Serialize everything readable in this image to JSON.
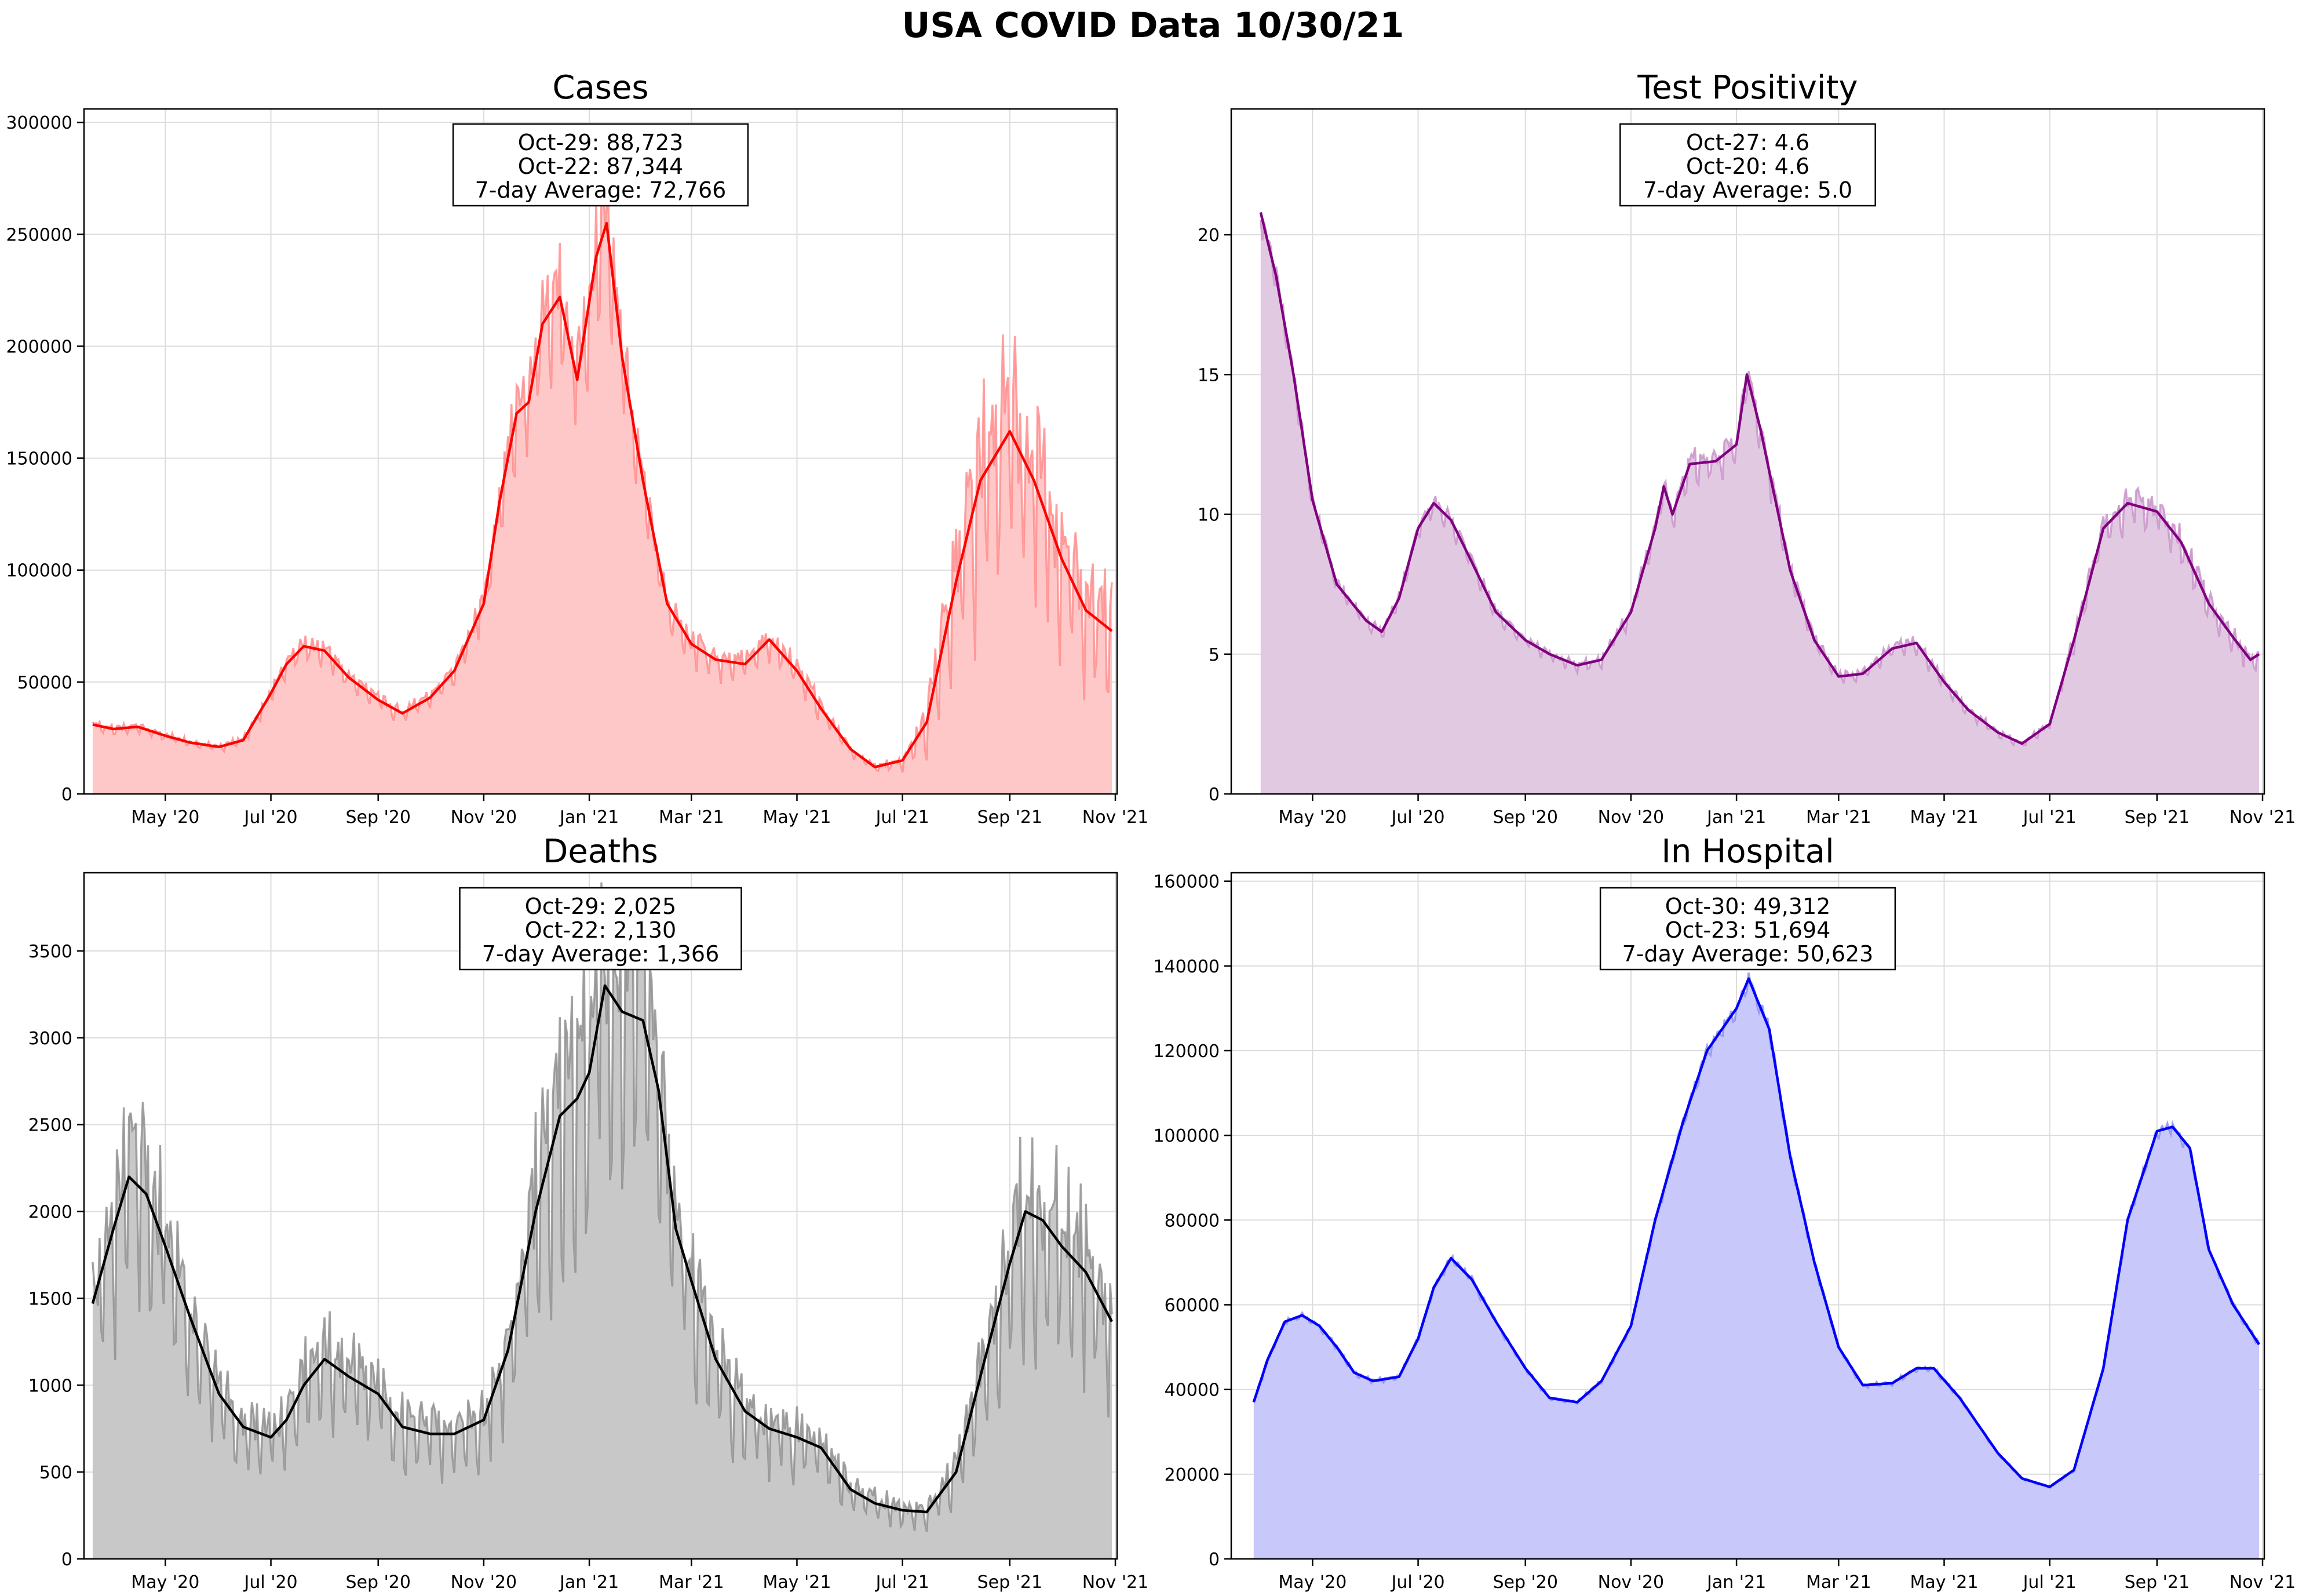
{
  "suptitle": "USA COVID Data 10/30/21",
  "x_tick_labels": [
    "May '20",
    "Jul '20",
    "Sep '20",
    "Nov '20",
    "Jan '21",
    "Mar '21",
    "May '21",
    "Jul '21",
    "Sep '21",
    "Nov '21"
  ],
  "chart_data": [
    {
      "type": "area",
      "title": "Cases",
      "color": "#ff0000",
      "fill_color": "#ffc8c8",
      "raw_color": "#ff8a8a",
      "xlim": [
        "2020-03-15",
        "2021-11-02"
      ],
      "ylim": [
        0,
        306000
      ],
      "yticks": [
        0,
        50000,
        100000,
        150000,
        200000,
        250000,
        300000
      ],
      "grid": true,
      "annotation": [
        "Oct-29: 88,723",
        "Oct-22: 87,344",
        "7-day Average: 72,766"
      ],
      "avg_points": [
        [
          "2020-03-20",
          31000
        ],
        [
          "2020-04-01",
          29000
        ],
        [
          "2020-04-15",
          30000
        ],
        [
          "2020-05-01",
          26000
        ],
        [
          "2020-05-15",
          23000
        ],
        [
          "2020-06-01",
          21000
        ],
        [
          "2020-06-15",
          24000
        ],
        [
          "2020-07-01",
          45000
        ],
        [
          "2020-07-10",
          58000
        ],
        [
          "2020-07-20",
          66000
        ],
        [
          "2020-08-01",
          64000
        ],
        [
          "2020-08-15",
          52000
        ],
        [
          "2020-09-01",
          42000
        ],
        [
          "2020-09-15",
          36000
        ],
        [
          "2020-10-01",
          43000
        ],
        [
          "2020-10-15",
          55000
        ],
        [
          "2020-11-01",
          85000
        ],
        [
          "2020-11-10",
          130000
        ],
        [
          "2020-11-20",
          170000
        ],
        [
          "2020-11-27",
          175000
        ],
        [
          "2020-12-05",
          210000
        ],
        [
          "2020-12-15",
          222000
        ],
        [
          "2020-12-25",
          185000
        ],
        [
          "2021-01-05",
          240000
        ],
        [
          "2021-01-11",
          255000
        ],
        [
          "2021-01-20",
          195000
        ],
        [
          "2021-02-01",
          140000
        ],
        [
          "2021-02-15",
          85000
        ],
        [
          "2021-03-01",
          67000
        ],
        [
          "2021-03-15",
          60000
        ],
        [
          "2021-04-01",
          58000
        ],
        [
          "2021-04-15",
          69000
        ],
        [
          "2021-05-01",
          55000
        ],
        [
          "2021-05-15",
          38000
        ],
        [
          "2021-06-01",
          20000
        ],
        [
          "2021-06-15",
          12000
        ],
        [
          "2021-07-01",
          15000
        ],
        [
          "2021-07-15",
          32000
        ],
        [
          "2021-08-01",
          95000
        ],
        [
          "2021-08-15",
          140000
        ],
        [
          "2021-09-01",
          162000
        ],
        [
          "2021-09-15",
          140000
        ],
        [
          "2021-10-01",
          105000
        ],
        [
          "2021-10-15",
          82000
        ],
        [
          "2021-10-30",
          72766
        ]
      ],
      "raw_spread": [
        [
          "2020-03-15",
          0.1
        ],
        [
          "2021-06-15",
          0.2
        ],
        [
          "2021-07-15",
          0.55
        ],
        [
          "2021-11-01",
          0.5
        ]
      ]
    },
    {
      "type": "area",
      "title": "Test Positivity",
      "color": "#800080",
      "fill_color": "#e2c9e2",
      "raw_color": "#c890c8",
      "xlim": [
        "2020-03-15",
        "2021-11-02"
      ],
      "ylim": [
        0,
        24.5
      ],
      "yticks": [
        0,
        5,
        10,
        15,
        20
      ],
      "grid": true,
      "annotation": [
        "Oct-27: 4.6",
        "Oct-20: 4.6",
        "7-day Average: 5.0"
      ],
      "avg_points": [
        [
          "2020-04-01",
          20.8
        ],
        [
          "2020-04-10",
          18.5
        ],
        [
          "2020-04-20",
          15.0
        ],
        [
          "2020-05-01",
          10.5
        ],
        [
          "2020-05-15",
          7.5
        ],
        [
          "2020-06-01",
          6.2
        ],
        [
          "2020-06-10",
          5.8
        ],
        [
          "2020-06-20",
          7.0
        ],
        [
          "2020-07-01",
          9.5
        ],
        [
          "2020-07-10",
          10.4
        ],
        [
          "2020-07-20",
          9.8
        ],
        [
          "2020-08-01",
          8.3
        ],
        [
          "2020-08-15",
          6.5
        ],
        [
          "2020-09-01",
          5.5
        ],
        [
          "2020-09-15",
          5.0
        ],
        [
          "2020-10-01",
          4.6
        ],
        [
          "2020-10-15",
          4.8
        ],
        [
          "2020-11-01",
          6.5
        ],
        [
          "2020-11-15",
          9.5
        ],
        [
          "2020-11-20",
          11.0
        ],
        [
          "2020-11-25",
          10.0
        ],
        [
          "2020-12-05",
          11.8
        ],
        [
          "2020-12-20",
          11.9
        ],
        [
          "2021-01-01",
          12.5
        ],
        [
          "2021-01-07",
          15.0
        ],
        [
          "2021-01-15",
          13.0
        ],
        [
          "2021-02-01",
          8.0
        ],
        [
          "2021-02-15",
          5.5
        ],
        [
          "2021-03-01",
          4.2
        ],
        [
          "2021-03-15",
          4.3
        ],
        [
          "2021-04-01",
          5.2
        ],
        [
          "2021-04-15",
          5.4
        ],
        [
          "2021-05-01",
          4.0
        ],
        [
          "2021-05-15",
          3.0
        ],
        [
          "2021-06-01",
          2.2
        ],
        [
          "2021-06-15",
          1.8
        ],
        [
          "2021-07-01",
          2.5
        ],
        [
          "2021-07-15",
          5.5
        ],
        [
          "2021-08-01",
          9.5
        ],
        [
          "2021-08-15",
          10.4
        ],
        [
          "2021-09-01",
          10.1
        ],
        [
          "2021-09-15",
          9.0
        ],
        [
          "2021-10-01",
          6.8
        ],
        [
          "2021-10-15",
          5.6
        ],
        [
          "2021-10-25",
          4.8
        ],
        [
          "2021-10-30",
          5.0
        ]
      ],
      "raw_spread": [
        [
          "2020-04-01",
          0.04
        ],
        [
          "2021-11-01",
          0.12
        ]
      ]
    },
    {
      "type": "area",
      "title": "Deaths",
      "color": "#000000",
      "fill_color": "#c8c8c8",
      "raw_color": "#8c8c8c",
      "xlim": [
        "2020-03-15",
        "2021-11-02"
      ],
      "ylim": [
        0,
        3950
      ],
      "yticks": [
        0,
        500,
        1000,
        1500,
        2000,
        2500,
        3000,
        3500
      ],
      "grid": true,
      "annotation": [
        "Oct-29: 2,025",
        "Oct-22: 2,130",
        "7-day Average: 1,366"
      ],
      "avg_points": [
        [
          "2020-03-20",
          1470
        ],
        [
          "2020-04-01",
          1900
        ],
        [
          "2020-04-10",
          2200
        ],
        [
          "2020-04-20",
          2100
        ],
        [
          "2020-05-01",
          1800
        ],
        [
          "2020-05-15",
          1400
        ],
        [
          "2020-06-01",
          950
        ],
        [
          "2020-06-15",
          760
        ],
        [
          "2020-07-01",
          700
        ],
        [
          "2020-07-10",
          800
        ],
        [
          "2020-07-20",
          1000
        ],
        [
          "2020-08-01",
          1150
        ],
        [
          "2020-08-15",
          1050
        ],
        [
          "2020-09-01",
          950
        ],
        [
          "2020-09-15",
          760
        ],
        [
          "2020-10-01",
          720
        ],
        [
          "2020-10-15",
          720
        ],
        [
          "2020-11-01",
          800
        ],
        [
          "2020-11-15",
          1200
        ],
        [
          "2020-12-01",
          2000
        ],
        [
          "2020-12-15",
          2550
        ],
        [
          "2020-12-25",
          2650
        ],
        [
          "2021-01-01",
          2800
        ],
        [
          "2021-01-10",
          3300
        ],
        [
          "2021-01-20",
          3150
        ],
        [
          "2021-02-01",
          3100
        ],
        [
          "2021-02-10",
          2700
        ],
        [
          "2021-02-20",
          1900
        ],
        [
          "2021-03-01",
          1600
        ],
        [
          "2021-03-15",
          1150
        ],
        [
          "2021-04-01",
          850
        ],
        [
          "2021-04-15",
          750
        ],
        [
          "2021-05-01",
          700
        ],
        [
          "2021-05-15",
          640
        ],
        [
          "2021-06-01",
          400
        ],
        [
          "2021-06-15",
          320
        ],
        [
          "2021-07-01",
          280
        ],
        [
          "2021-07-15",
          270
        ],
        [
          "2021-08-01",
          500
        ],
        [
          "2021-08-15",
          1050
        ],
        [
          "2021-09-01",
          1700
        ],
        [
          "2021-09-10",
          2000
        ],
        [
          "2021-09-20",
          1950
        ],
        [
          "2021-10-01",
          1800
        ],
        [
          "2021-10-15",
          1650
        ],
        [
          "2021-10-30",
          1366
        ]
      ],
      "raw_spread": [
        [
          "2020-03-15",
          0.4
        ],
        [
          "2021-11-01",
          0.45
        ]
      ]
    },
    {
      "type": "area",
      "title": "In Hospital",
      "color": "#0000ff",
      "fill_color": "#c8c8fa",
      "raw_color": "#8c8cf0",
      "xlim": [
        "2020-03-15",
        "2021-11-02"
      ],
      "ylim": [
        0,
        162000
      ],
      "yticks": [
        0,
        20000,
        40000,
        60000,
        80000,
        100000,
        120000,
        140000,
        160000
      ],
      "grid": true,
      "annotation": [
        "Oct-30: 49,312",
        "Oct-23: 51,694",
        "7-day Average: 50,623"
      ],
      "avg_points": [
        [
          "2020-03-28",
          37000
        ],
        [
          "2020-04-05",
          47000
        ],
        [
          "2020-04-15",
          56000
        ],
        [
          "2020-04-25",
          57500
        ],
        [
          "2020-05-05",
          55000
        ],
        [
          "2020-05-15",
          50000
        ],
        [
          "2020-05-25",
          44000
        ],
        [
          "2020-06-05",
          42000
        ],
        [
          "2020-06-20",
          43000
        ],
        [
          "2020-07-01",
          52000
        ],
        [
          "2020-07-10",
          64000
        ],
        [
          "2020-07-20",
          71000
        ],
        [
          "2020-08-01",
          66000
        ],
        [
          "2020-08-15",
          56000
        ],
        [
          "2020-09-01",
          45000
        ],
        [
          "2020-09-15",
          38000
        ],
        [
          "2020-10-01",
          37000
        ],
        [
          "2020-10-15",
          42000
        ],
        [
          "2020-11-01",
          55000
        ],
        [
          "2020-11-15",
          80000
        ],
        [
          "2020-12-01",
          103000
        ],
        [
          "2020-12-15",
          120000
        ],
        [
          "2021-01-01",
          130000
        ],
        [
          "2021-01-08",
          137000
        ],
        [
          "2021-01-20",
          125000
        ],
        [
          "2021-02-01",
          95000
        ],
        [
          "2021-02-15",
          70000
        ],
        [
          "2021-03-01",
          50000
        ],
        [
          "2021-03-15",
          41000
        ],
        [
          "2021-04-01",
          41500
        ],
        [
          "2021-04-15",
          45000
        ],
        [
          "2021-04-25",
          45000
        ],
        [
          "2021-05-10",
          38000
        ],
        [
          "2021-06-01",
          25000
        ],
        [
          "2021-06-15",
          19000
        ],
        [
          "2021-07-01",
          17000
        ],
        [
          "2021-07-15",
          21000
        ],
        [
          "2021-08-01",
          45000
        ],
        [
          "2021-08-15",
          80000
        ],
        [
          "2021-09-01",
          101000
        ],
        [
          "2021-09-10",
          102000
        ],
        [
          "2021-09-20",
          97000
        ],
        [
          "2021-10-01",
          73000
        ],
        [
          "2021-10-15",
          60000
        ],
        [
          "2021-10-30",
          50623
        ]
      ],
      "raw_spread": [
        [
          "2020-03-15",
          0.02
        ],
        [
          "2021-11-01",
          0.02
        ]
      ]
    }
  ]
}
